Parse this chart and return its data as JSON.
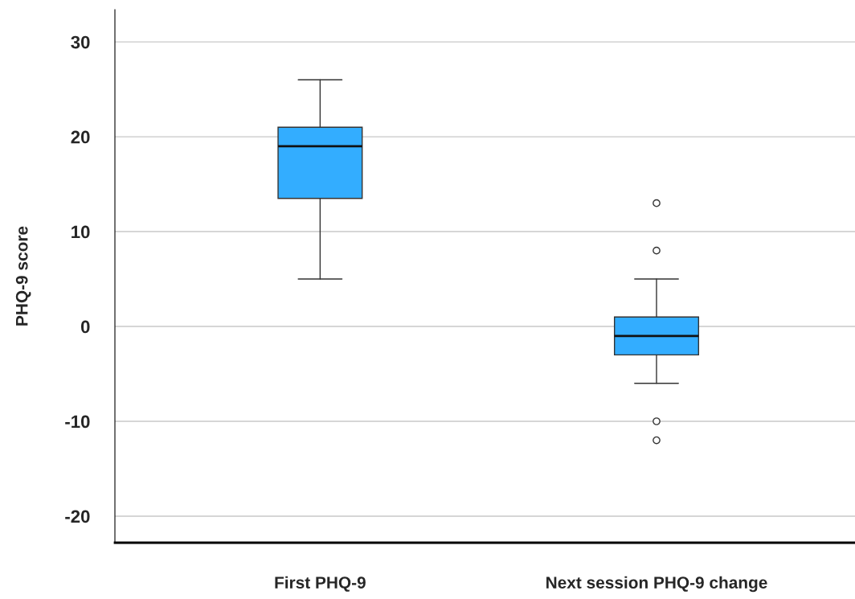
{
  "chart_data": {
    "type": "box",
    "ylabel": "PHQ-9 score",
    "categories": [
      "First PHQ-9",
      "Next session PHQ-9 change"
    ],
    "boxes": [
      {
        "low": 5,
        "q1": 13.5,
        "median": 19,
        "q3": 21,
        "high": 26
      },
      {
        "low": -6,
        "q1": -3,
        "median": -1,
        "q3": 1,
        "high": 5,
        "outliers": [
          13,
          8,
          -10,
          -12
        ]
      }
    ],
    "color": "#33adff",
    "ylim": [
      -22.8,
      33.4
    ],
    "yticks": [
      -20,
      -10,
      0,
      10,
      20,
      30
    ],
    "grid": "y"
  }
}
